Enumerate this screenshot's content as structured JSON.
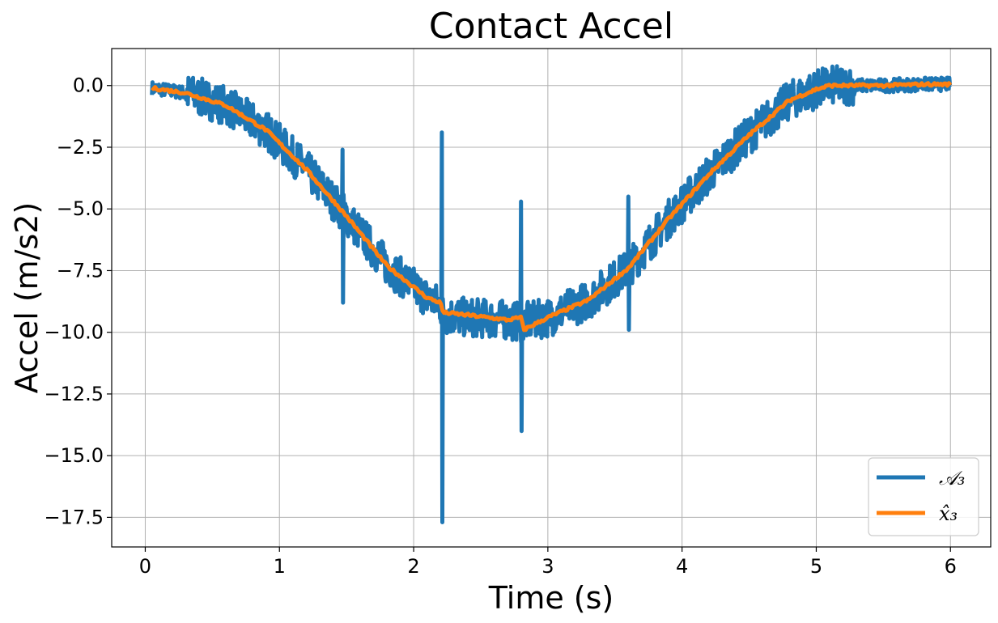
{
  "chart_data": {
    "type": "line",
    "title": "Contact Accel",
    "xlabel": "Time (s)",
    "ylabel": "Accel (m/s2)",
    "xlim": [
      -0.25,
      6.3
    ],
    "ylim": [
      -18.7,
      1.5
    ],
    "xticks": [
      0,
      1,
      2,
      3,
      4,
      5,
      6
    ],
    "xtick_labels": [
      "0",
      "1",
      "2",
      "3",
      "4",
      "5",
      "6"
    ],
    "yticks": [
      0.0,
      -2.5,
      -5.0,
      -7.5,
      -10.0,
      -12.5,
      -15.0,
      -17.5
    ],
    "ytick_labels": [
      "0.0",
      "−2.5",
      "−5.0",
      "−7.5",
      "−10.0",
      "−12.5",
      "−15.0",
      "−17.5"
    ],
    "grid": true,
    "legend_position": "lower-right",
    "series": [
      {
        "name": "𝒜₃",
        "color": "#1f77b4",
        "style": "noisy",
        "x": [
          0.05,
          0.3,
          0.6,
          0.9,
          1.2,
          1.5,
          1.8,
          2.1,
          2.2,
          2.22,
          2.4,
          2.7,
          2.8,
          2.82,
          3.0,
          3.3,
          3.6,
          3.9,
          4.2,
          4.5,
          4.8,
          5.0,
          5.1,
          5.5,
          5.8,
          6.0
        ],
        "values": [
          -0.1,
          -0.3,
          -0.8,
          -1.8,
          -3.4,
          -5.3,
          -7.3,
          -8.6,
          -8.9,
          -9.3,
          -9.4,
          -9.5,
          -9.6,
          -9.6,
          -9.4,
          -8.7,
          -7.4,
          -5.4,
          -3.6,
          -2.0,
          -0.6,
          -0.15,
          0.0,
          0.0,
          0.05,
          0.05
        ],
        "noise_amplitude": 0.8,
        "spikes": [
          {
            "x": 1.47,
            "low": -8.8,
            "high": -2.6
          },
          {
            "x": 2.21,
            "low": -17.7,
            "high": -1.9
          },
          {
            "x": 2.8,
            "low": -14.0,
            "high": -4.7
          },
          {
            "x": 3.6,
            "low": -9.9,
            "high": -4.5
          }
        ]
      },
      {
        "name": "x̂₃",
        "color": "#ff7f0e",
        "style": "smooth",
        "x": [
          0.05,
          0.3,
          0.6,
          0.9,
          1.2,
          1.5,
          1.8,
          2.1,
          2.2,
          2.22,
          2.4,
          2.7,
          2.8,
          2.82,
          3.0,
          3.3,
          3.6,
          3.9,
          4.2,
          4.5,
          4.8,
          5.0,
          5.1,
          5.5,
          5.8,
          6.0
        ],
        "values": [
          -0.1,
          -0.3,
          -0.8,
          -1.8,
          -3.4,
          -5.3,
          -7.3,
          -8.6,
          -8.8,
          -9.2,
          -9.3,
          -9.5,
          -9.4,
          -9.9,
          -9.4,
          -8.7,
          -7.4,
          -5.4,
          -3.6,
          -2.0,
          -0.6,
          -0.15,
          0.0,
          0.0,
          0.05,
          0.05
        ]
      }
    ]
  }
}
